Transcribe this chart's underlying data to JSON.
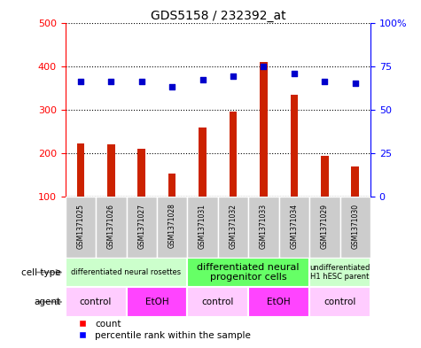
{
  "title": "GDS5158 / 232392_at",
  "samples": [
    "GSM1371025",
    "GSM1371026",
    "GSM1371027",
    "GSM1371028",
    "GSM1371031",
    "GSM1371032",
    "GSM1371033",
    "GSM1371034",
    "GSM1371029",
    "GSM1371030"
  ],
  "counts": [
    222,
    220,
    211,
    152,
    258,
    295,
    410,
    335,
    193,
    170
  ],
  "percentiles": [
    66,
    66,
    66,
    63,
    67,
    69,
    75,
    71,
    66,
    65
  ],
  "ylim_left": [
    100,
    500
  ],
  "ylim_right": [
    0,
    100
  ],
  "yticks_left": [
    100,
    200,
    300,
    400,
    500
  ],
  "yticks_right": [
    0,
    25,
    50,
    75,
    100
  ],
  "bar_color": "#cc2200",
  "dot_color": "#0000cc",
  "cell_type_groups": [
    {
      "label": "differentiated neural rosettes",
      "start": 0,
      "end": 3,
      "color": "#ccffcc",
      "fontsize": 6
    },
    {
      "label": "differentiated neural\nprogenitor cells",
      "start": 4,
      "end": 7,
      "color": "#66ff66",
      "fontsize": 8
    },
    {
      "label": "undifferentiated\nH1 hESC parent",
      "start": 8,
      "end": 9,
      "color": "#ccffcc",
      "fontsize": 6
    }
  ],
  "agent_groups": [
    {
      "label": "control",
      "start": 0,
      "end": 1,
      "color": "#ffccff"
    },
    {
      "label": "EtOH",
      "start": 2,
      "end": 3,
      "color": "#ff44ff"
    },
    {
      "label": "control",
      "start": 4,
      "end": 5,
      "color": "#ffccff"
    },
    {
      "label": "EtOH",
      "start": 6,
      "end": 7,
      "color": "#ff44ff"
    },
    {
      "label": "control",
      "start": 8,
      "end": 9,
      "color": "#ffccff"
    }
  ],
  "legend_count_label": "count",
  "legend_percentile_label": "percentile rank within the sample",
  "cell_type_label": "cell type",
  "agent_label": "agent",
  "sample_bg_color": "#cccccc",
  "background_color": "#ffffff"
}
